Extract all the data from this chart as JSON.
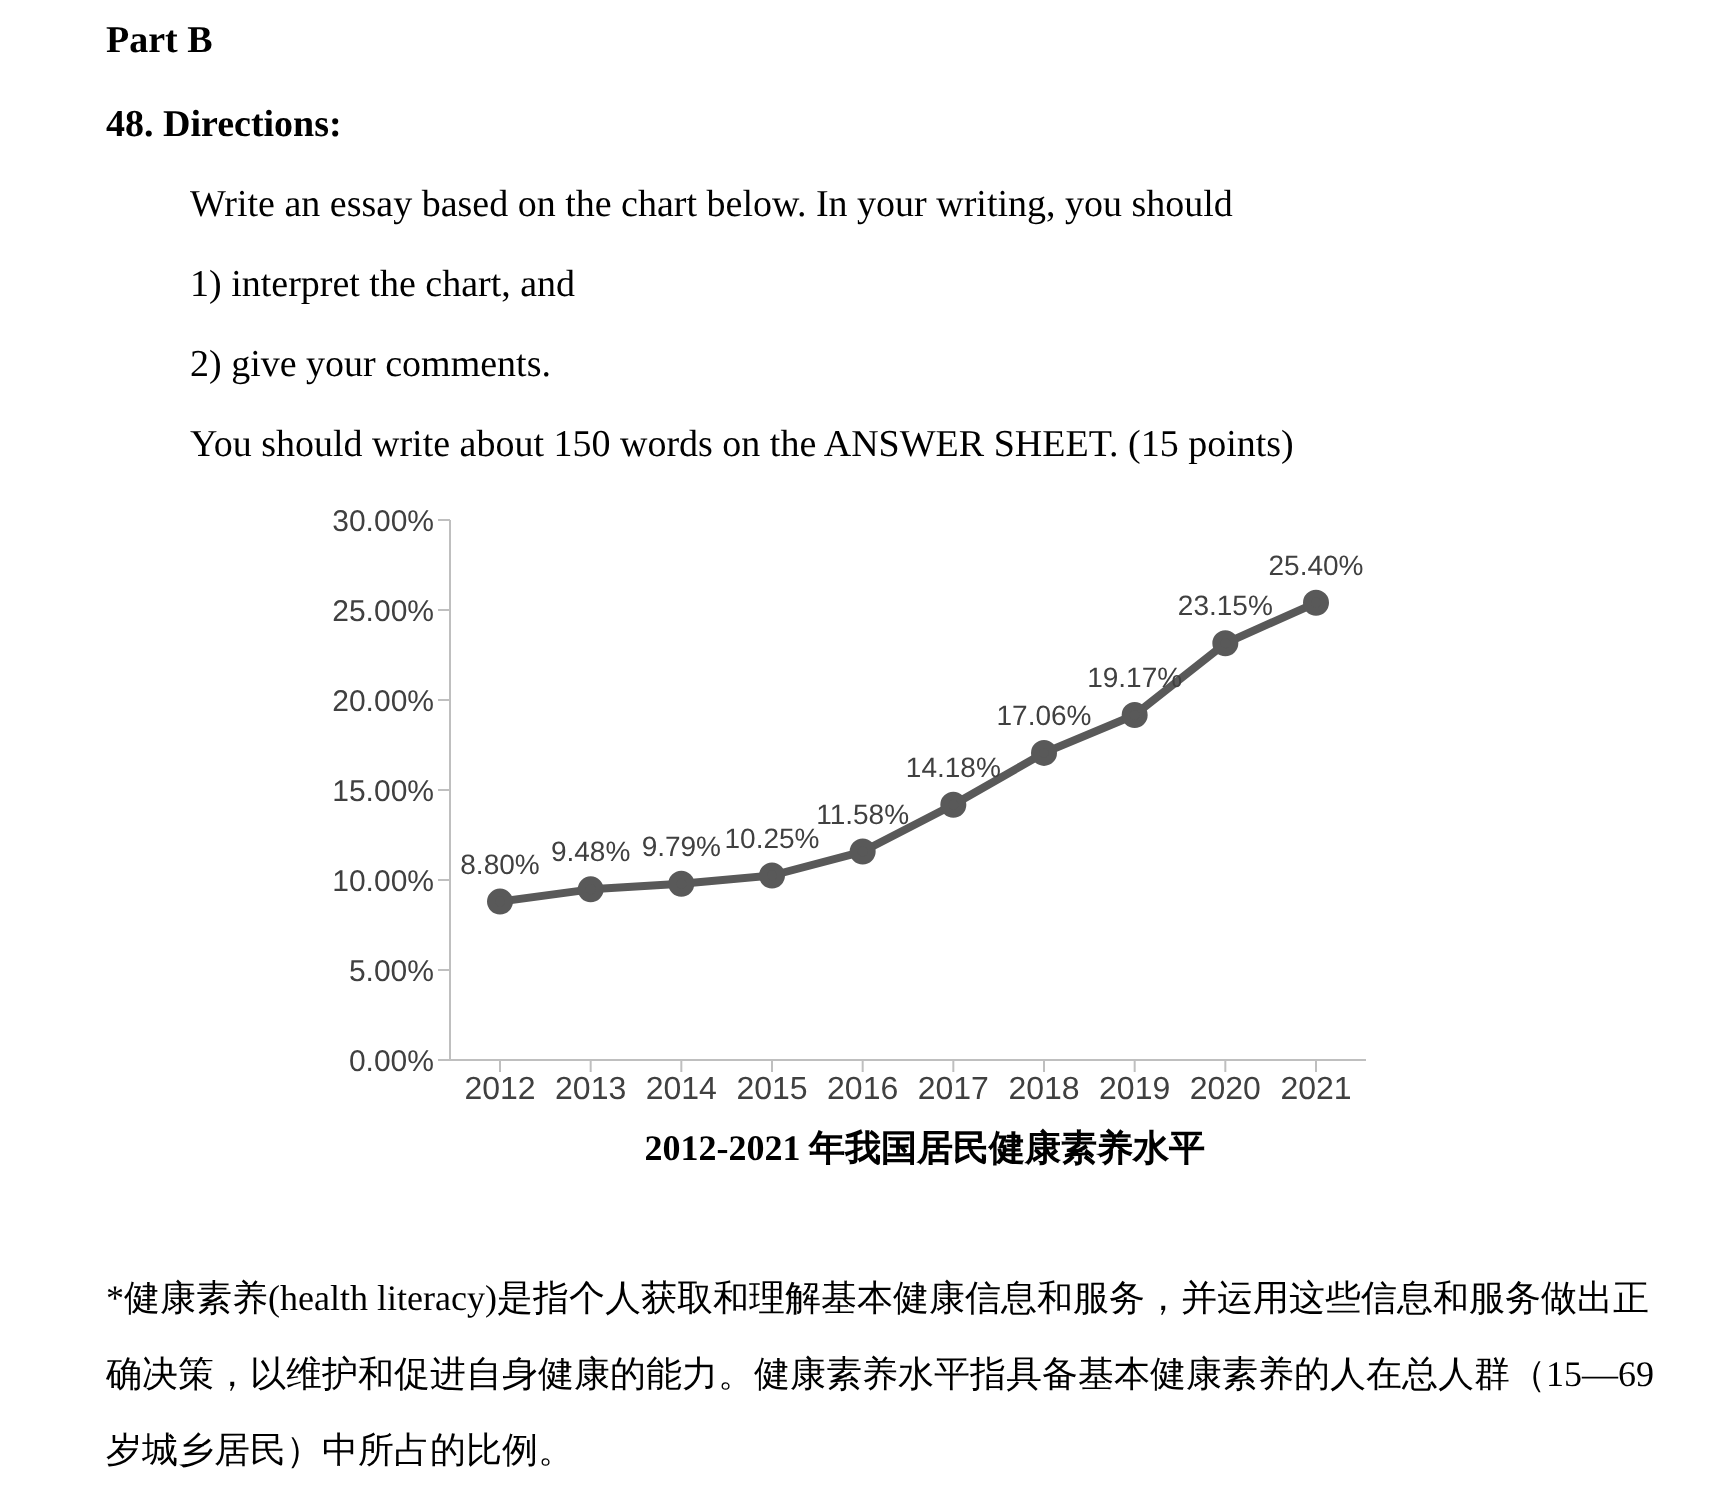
{
  "chart_data": {
    "type": "line",
    "title": "2012-2021 年我国居民健康素养水平",
    "annotations": [
      "Part B",
      "48. Directions:",
      "Write an essay based on the chart below. In your writing, you should",
      "1) interpret the chart, and",
      "2) give your comments.",
      "You should write about 150 words on the ANSWER SHEET. (15 points)",
      "*健康素养(health literacy)是指个人获取和理解基本健康信息和服务，并运用这些信息和服务做出正确决策，以维护和促进自身健康的能力。健康素养水平指具备基本健康素养的人在总人群（15—69 岁城乡居民）中所占的比例。"
    ],
    "categories": [
      "2012",
      "2013",
      "2014",
      "2015",
      "2016",
      "2017",
      "2018",
      "2019",
      "2020",
      "2021"
    ],
    "values": [
      8.8,
      9.48,
      9.79,
      10.25,
      11.58,
      14.18,
      17.06,
      19.17,
      23.15,
      25.4
    ],
    "value_labels": [
      "8.80%",
      "9.48%",
      "9.79%",
      "10.25%",
      "11.58%",
      "14.18%",
      "17.06%",
      "19.17%",
      "23.15%",
      "25.40%"
    ],
    "color": "#595959",
    "ylim": [
      0,
      30
    ],
    "yticks": [
      {
        "value": 0,
        "label": "0.00%"
      },
      {
        "value": 5,
        "label": "5.00%"
      },
      {
        "value": 10,
        "label": "10.00%"
      },
      {
        "value": 15,
        "label": "15.00%"
      },
      {
        "value": 20,
        "label": "20.00%"
      },
      {
        "value": 25,
        "label": "25.00%"
      },
      {
        "value": 30,
        "label": "30.00%"
      }
    ],
    "grid": false,
    "marker": "circle",
    "line_style": "solid"
  }
}
